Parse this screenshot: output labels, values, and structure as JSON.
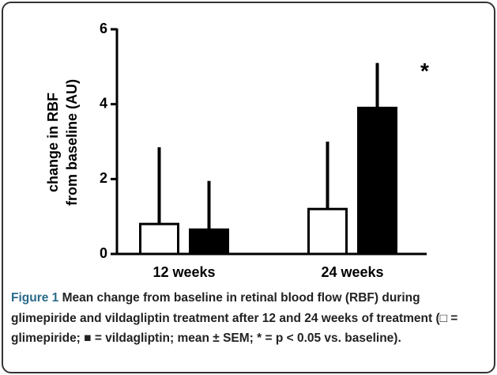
{
  "chart_data": {
    "type": "bar",
    "ylabel": [
      "change in RBF",
      "from baseline (AU)"
    ],
    "categories": [
      "12 weeks",
      "24 weeks"
    ],
    "series": [
      {
        "color": "#ffffff",
        "values": [
          0.8,
          1.2
        ],
        "errors": [
          2.05,
          1.8
        ]
      },
      {
        "color": "#000000",
        "values": [
          0.65,
          3.9
        ],
        "errors": [
          1.3,
          1.2
        ]
      }
    ],
    "annotation": "*",
    "ylim": [
      0,
      6
    ],
    "yticks": [
      0,
      2,
      4,
      6
    ]
  },
  "caption": {
    "label": "Figure 1",
    "text": "Mean change from baseline in retinal blood flow (RBF) during glimepiride and vildagliptin treatment after 12 and 24 weeks of treatment (□ = glimepiride; ■ = vildagliptin; mean ± SEM; * = p < 0.05 vs. baseline)."
  }
}
